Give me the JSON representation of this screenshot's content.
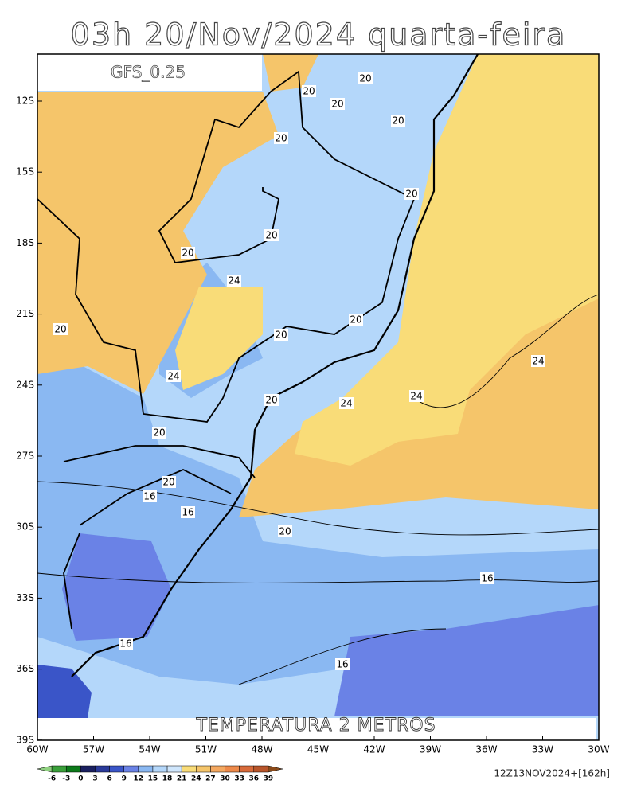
{
  "header": {
    "title": "03h 20/Nov/2024 quarta-feira",
    "model": "GFS_0.25"
  },
  "map": {
    "field_label": "TEMPERATURA 2 METROS",
    "lat_ticks": [
      "12S",
      "15S",
      "18S",
      "21S",
      "24S",
      "27S",
      "30S",
      "33S",
      "36S",
      "39S"
    ],
    "lon_ticks": [
      "60W",
      "57W",
      "54W",
      "51W",
      "48W",
      "45W",
      "42W",
      "39W",
      "36W",
      "33W",
      "30W"
    ],
    "contour_labels": [
      "20",
      "20",
      "20",
      "20",
      "20",
      "20",
      "20",
      "20",
      "24",
      "20",
      "20",
      "24",
      "20",
      "24",
      "24",
      "24",
      "20",
      "20",
      "16",
      "16",
      "20",
      "20",
      "16",
      "16",
      "16"
    ]
  },
  "colorbar": {
    "labels": [
      "-6",
      "-3",
      "0",
      "3",
      "6",
      "9",
      "12",
      "15",
      "18",
      "21",
      "24",
      "27",
      "30",
      "33",
      "36",
      "39"
    ],
    "colors": [
      "#8fd080",
      "#3aa03a",
      "#0c7a1a",
      "#1a2060",
      "#2a3a9a",
      "#3a55c8",
      "#6a82e6",
      "#8ab8f2",
      "#b4d7fa",
      "#cfe6fc",
      "#f9dc78",
      "#f5c56a",
      "#f4a860",
      "#ee8a4a",
      "#d86a3a",
      "#b8552a",
      "#8a4a1a"
    ]
  },
  "footer": {
    "run": "12Z13NOV2024+[162h]"
  }
}
